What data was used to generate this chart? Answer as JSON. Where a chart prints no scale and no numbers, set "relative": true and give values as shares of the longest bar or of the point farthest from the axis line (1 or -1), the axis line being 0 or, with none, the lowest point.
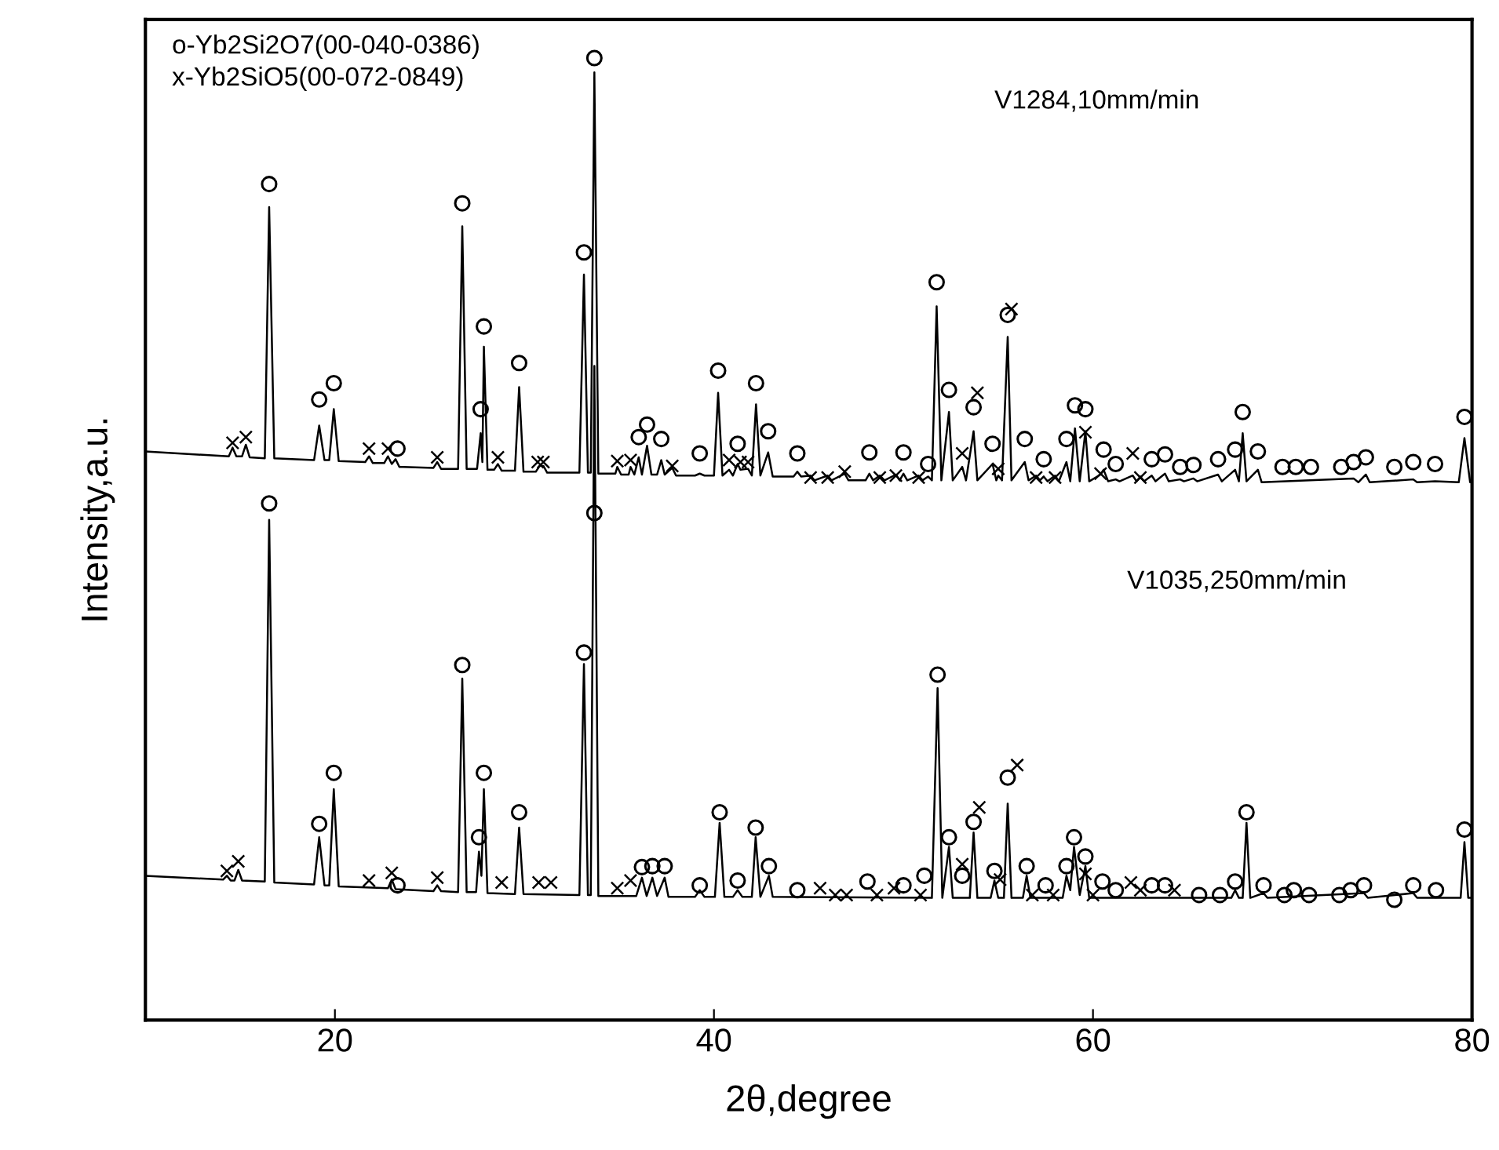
{
  "chart_data": {
    "type": "line",
    "relative": true,
    "xlabel": "2θ,degree",
    "ylabel": "Intensity,a.u.",
    "xlim": [
      10,
      80
    ],
    "xticks": [
      20,
      40,
      60,
      80
    ],
    "grid": false,
    "legend": false,
    "annotations": [
      "o-Yb2Si2O7(00-040-0386)",
      "x-Yb2SiO5(00-072-0849)",
      "V1284,10mm/min",
      "V1035,250mm/min"
    ],
    "series": [
      {
        "color": "#000000",
        "marker": "none",
        "x": [
          10,
          14.4,
          14.6,
          14.8,
          15.1,
          15.3,
          15.5,
          16.3,
          16.53,
          16.8,
          18.9,
          19.17,
          19.45,
          19.7,
          19.94,
          20.2,
          21.6,
          21.8,
          22.0,
          22.6,
          22.8,
          23.0,
          23.2,
          23.4,
          23.6,
          25.2,
          25.4,
          25.6,
          26.5,
          26.72,
          26.95,
          27.5,
          27.69,
          27.78,
          27.86,
          28.05,
          28.4,
          28.6,
          28.8,
          29.5,
          29.72,
          29.95,
          30.6,
          30.8,
          31.0,
          31.2,
          32.9,
          33.14,
          33.35,
          33.5,
          33.69,
          33.9,
          34.8,
          34.9,
          35.1,
          35.5,
          35.6,
          35.8,
          36.03,
          36.2,
          36.47,
          36.7,
          37.0,
          37.22,
          37.4,
          37.8,
          38.0,
          39.0,
          39.25,
          39.5,
          40.0,
          40.22,
          40.45,
          40.8,
          41.0,
          41.25,
          41.4,
          41.8,
          42.0,
          42.22,
          42.45,
          42.86,
          43.1,
          44.2,
          44.4,
          44.6,
          45.1,
          45.3,
          46.0,
          46.2,
          46.9,
          47.1,
          48.0,
          48.2,
          48.4,
          48.75,
          49.0,
          49.6,
          49.8,
          50.0,
          50.2,
          50.8,
          51.0,
          51.3,
          51.5,
          51.75,
          52.0,
          52.4,
          52.6,
          53.1,
          53.3,
          53.7,
          53.9,
          54.7,
          54.9,
          55.0,
          55.2,
          55.5,
          55.7,
          56.4,
          56.6,
          57.0,
          57.2,
          57.4,
          57.6,
          58.0,
          58.2,
          58.6,
          58.8,
          59.05,
          59.3,
          59.6,
          59.8,
          60.4,
          60.56,
          60.8,
          61.2,
          61.4,
          62.1,
          62.3,
          62.5,
          62.7,
          63.1,
          63.3,
          63.8,
          64.0,
          64.6,
          64.8,
          65.3,
          65.5,
          66.6,
          66.8,
          67.5,
          67.7,
          67.9,
          68.1,
          68.7,
          68.9,
          73.75,
          74.0,
          74.4,
          74.6,
          76.9,
          77.1,
          78.05,
          79.3,
          79.6,
          79.9,
          80
        ],
        "values": [
          0.591,
          0.586,
          0.595,
          0.586,
          0.586,
          0.598,
          0.585,
          0.584,
          0.845,
          0.584,
          0.582,
          0.618,
          0.582,
          0.582,
          0.635,
          0.581,
          0.58,
          0.586,
          0.579,
          0.579,
          0.586,
          0.578,
          0.583,
          0.575,
          0.575,
          0.574,
          0.58,
          0.573,
          0.573,
          0.825,
          0.573,
          0.573,
          0.61,
          0.58,
          0.7,
          0.572,
          0.572,
          0.578,
          0.571,
          0.571,
          0.658,
          0.57,
          0.57,
          0.576,
          0.576,
          0.569,
          0.569,
          0.775,
          0.569,
          0.569,
          0.985,
          0.568,
          0.568,
          0.575,
          0.567,
          0.567,
          0.575,
          0.567,
          0.585,
          0.567,
          0.597,
          0.567,
          0.567,
          0.582,
          0.567,
          0.574,
          0.566,
          0.566,
          0.568,
          0.566,
          0.566,
          0.652,
          0.566,
          0.572,
          0.566,
          0.578,
          0.572,
          0.573,
          0.566,
          0.64,
          0.566,
          0.59,
          0.565,
          0.565,
          0.57,
          0.565,
          0.566,
          0.561,
          0.566,
          0.561,
          0.568,
          0.561,
          0.561,
          0.568,
          0.561,
          0.566,
          0.561,
          0.567,
          0.561,
          0.568,
          0.561,
          0.566,
          0.561,
          0.565,
          0.561,
          0.742,
          0.561,
          0.632,
          0.561,
          0.575,
          0.561,
          0.612,
          0.561,
          0.578,
          0.561,
          0.566,
          0.561,
          0.71,
          0.561,
          0.58,
          0.561,
          0.566,
          0.561,
          0.565,
          0.56,
          0.566,
          0.56,
          0.58,
          0.56,
          0.615,
          0.56,
          0.612,
          0.56,
          0.567,
          0.572,
          0.56,
          0.562,
          0.56,
          0.566,
          0.56,
          0.565,
          0.56,
          0.566,
          0.56,
          0.568,
          0.56,
          0.562,
          0.56,
          0.563,
          0.56,
          0.567,
          0.56,
          0.572,
          0.56,
          0.61,
          0.56,
          0.572,
          0.559,
          0.563,
          0.559,
          0.567,
          0.559,
          0.562,
          0.559,
          0.56,
          0.559,
          0.605,
          0.559,
          0.559
        ]
      },
      {
        "color": "#000000",
        "marker": "none",
        "x": [
          10,
          14.1,
          14.3,
          14.5,
          14.7,
          14.9,
          15.1,
          16.3,
          16.53,
          16.8,
          18.9,
          19.17,
          19.45,
          19.7,
          19.94,
          20.2,
          22.8,
          23.0,
          23.2,
          25.2,
          25.4,
          25.6,
          26.5,
          26.72,
          26.95,
          27.45,
          27.6,
          27.73,
          27.86,
          28.05,
          29.5,
          29.72,
          29.95,
          32.9,
          33.14,
          33.35,
          33.5,
          33.69,
          33.9,
          35.9,
          36.2,
          36.45,
          36.75,
          37.0,
          37.4,
          37.6,
          39.0,
          39.25,
          39.5,
          40.05,
          40.3,
          40.55,
          41.0,
          41.25,
          41.5,
          42.0,
          42.2,
          42.45,
          42.9,
          43.1,
          51.5,
          51.8,
          52.05,
          52.4,
          52.6,
          53.5,
          53.7,
          53.9,
          54.6,
          54.8,
          55.0,
          55.3,
          55.5,
          55.7,
          56.3,
          56.5,
          56.7,
          58.4,
          58.6,
          58.8,
          59.0,
          59.3,
          59.6,
          59.8,
          67.3,
          67.5,
          67.7,
          67.9,
          68.1,
          68.3,
          69.0,
          69.2,
          74.3,
          74.5,
          76.9,
          77.1,
          79.4,
          79.6,
          79.8,
          80
        ],
        "values": [
          0.15,
          0.146,
          0.15,
          0.145,
          0.145,
          0.156,
          0.145,
          0.144,
          0.52,
          0.143,
          0.141,
          0.19,
          0.14,
          0.14,
          0.24,
          0.139,
          0.137,
          0.146,
          0.136,
          0.134,
          0.14,
          0.134,
          0.133,
          0.355,
          0.133,
          0.133,
          0.175,
          0.15,
          0.24,
          0.132,
          0.131,
          0.2,
          0.131,
          0.13,
          0.37,
          0.13,
          0.13,
          0.68,
          0.129,
          0.129,
          0.148,
          0.129,
          0.148,
          0.129,
          0.148,
          0.128,
          0.128,
          0.135,
          0.128,
          0.128,
          0.205,
          0.128,
          0.128,
          0.135,
          0.128,
          0.128,
          0.19,
          0.128,
          0.15,
          0.128,
          0.127,
          0.345,
          0.127,
          0.18,
          0.127,
          0.127,
          0.195,
          0.127,
          0.127,
          0.145,
          0.127,
          0.127,
          0.225,
          0.127,
          0.127,
          0.15,
          0.127,
          0.127,
          0.15,
          0.135,
          0.18,
          0.13,
          0.16,
          0.127,
          0.127,
          0.135,
          0.127,
          0.127,
          0.205,
          0.127,
          0.132,
          0.127,
          0.132,
          0.127,
          0.132,
          0.127,
          0.127,
          0.185,
          0.127,
          0.127
        ]
      },
      {
        "type": "scatter",
        "color": "#000000",
        "marker": "circle",
        "x": [
          16.53,
          19.17,
          19.94,
          23.3,
          26.72,
          27.69,
          27.86,
          29.72,
          33.14,
          33.69,
          36.03,
          36.47,
          37.22,
          39.25,
          40.22,
          41.25,
          42.22,
          42.86,
          44.4,
          48.2,
          50.0,
          51.3,
          51.75,
          52.4,
          53.7,
          54.7,
          55.5,
          56.4,
          57.4,
          58.6,
          59.05,
          59.6,
          60.56,
          61.2,
          63.1,
          63.8,
          64.6,
          65.3,
          66.6,
          67.5,
          67.9,
          68.7,
          70.0,
          70.7,
          71.5,
          73.1,
          73.75,
          74.4,
          75.9,
          76.9,
          78.05,
          79.6
        ],
        "values": [
          0.869,
          0.645,
          0.662,
          0.594,
          0.849,
          0.635,
          0.721,
          0.683,
          0.798,
          1.0,
          0.606,
          0.619,
          0.604,
          0.589,
          0.675,
          0.599,
          0.662,
          0.612,
          0.589,
          0.59,
          0.59,
          0.578,
          0.767,
          0.655,
          0.637,
          0.599,
          0.733,
          0.604,
          0.583,
          0.604,
          0.639,
          0.635,
          0.593,
          0.578,
          0.583,
          0.588,
          0.575,
          0.577,
          0.583,
          0.593,
          0.632,
          0.591,
          0.575,
          0.575,
          0.575,
          0.575,
          0.58,
          0.585,
          0.575,
          0.58,
          0.578,
          0.627
        ]
      },
      {
        "type": "scatter",
        "color": "#000000",
        "marker": "cross",
        "x": [
          14.6,
          15.3,
          21.8,
          22.8,
          25.4,
          28.6,
          30.7,
          31.0,
          34.9,
          35.6,
          37.8,
          40.8,
          41.4,
          41.8,
          45.1,
          46.0,
          46.9,
          48.75,
          49.6,
          50.8,
          53.1,
          53.9,
          55.0,
          55.7,
          57.0,
          58.0,
          59.6,
          60.4,
          62.1,
          62.5
        ],
        "values": [
          0.6,
          0.606,
          0.594,
          0.594,
          0.585,
          0.585,
          0.58,
          0.58,
          0.581,
          0.582,
          0.576,
          0.582,
          0.58,
          0.58,
          0.564,
          0.564,
          0.57,
          0.564,
          0.566,
          0.564,
          0.589,
          0.652,
          0.573,
          0.739,
          0.564,
          0.564,
          0.611,
          0.568,
          0.589,
          0.564
        ]
      },
      {
        "type": "scatter",
        "color": "#000000",
        "marker": "circle",
        "x": [
          16.53,
          19.17,
          19.94,
          23.3,
          26.72,
          27.6,
          27.86,
          29.72,
          33.14,
          33.69,
          36.2,
          36.75,
          37.4,
          39.25,
          40.3,
          41.25,
          42.2,
          42.9,
          44.4,
          48.1,
          50.0,
          51.1,
          51.8,
          52.4,
          53.1,
          53.7,
          54.8,
          55.5,
          56.5,
          57.5,
          58.6,
          59.0,
          59.6,
          60.5,
          61.2,
          63.1,
          63.8,
          65.6,
          66.7,
          67.5,
          68.1,
          69.0,
          70.1,
          70.6,
          71.4,
          73.0,
          73.6,
          74.3,
          75.9,
          76.9,
          78.1,
          79.6
        ],
        "values": [
          0.537,
          0.204,
          0.257,
          0.14,
          0.369,
          0.19,
          0.257,
          0.216,
          0.382,
          0.527,
          0.159,
          0.16,
          0.16,
          0.14,
          0.216,
          0.145,
          0.2,
          0.16,
          0.135,
          0.144,
          0.14,
          0.15,
          0.359,
          0.19,
          0.15,
          0.206,
          0.155,
          0.252,
          0.16,
          0.14,
          0.16,
          0.19,
          0.17,
          0.144,
          0.135,
          0.14,
          0.14,
          0.13,
          0.13,
          0.144,
          0.216,
          0.14,
          0.13,
          0.135,
          0.13,
          0.13,
          0.135,
          0.14,
          0.125,
          0.14,
          0.135,
          0.198
        ]
      },
      {
        "type": "scatter",
        "color": "#000000",
        "marker": "cross",
        "x": [
          14.3,
          14.9,
          21.8,
          23.0,
          25.4,
          28.8,
          30.75,
          31.4,
          34.9,
          35.6,
          45.6,
          46.4,
          47.0,
          48.6,
          49.5,
          50.9,
          53.1,
          54.0,
          55.1,
          56.0,
          56.8,
          57.9,
          59.6,
          60.0,
          62.0,
          62.5,
          64.3
        ],
        "values": [
          0.155,
          0.165,
          0.145,
          0.153,
          0.148,
          0.143,
          0.143,
          0.143,
          0.137,
          0.145,
          0.137,
          0.13,
          0.13,
          0.13,
          0.137,
          0.13,
          0.162,
          0.221,
          0.146,
          0.265,
          0.13,
          0.13,
          0.152,
          0.13,
          0.143,
          0.135,
          0.135
        ]
      }
    ]
  }
}
